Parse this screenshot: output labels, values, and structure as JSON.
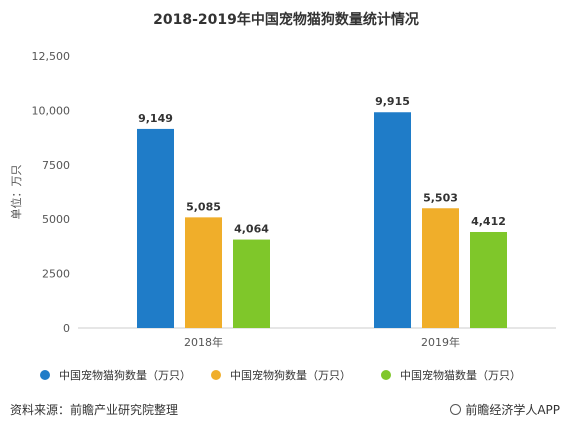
{
  "chart_data": {
    "type": "bar",
    "title": "2018-2019年中国宠物猫狗数量统计情况",
    "ylabel": "单位：万只",
    "xlabel": "",
    "categories": [
      "2018年",
      "2019年"
    ],
    "yticks": [
      0,
      2500,
      5000,
      7500,
      10000,
      12500
    ],
    "ytick_labels": [
      "0",
      "2500",
      "5000",
      "7500",
      "10,000",
      "12,500"
    ],
    "ylim": [
      0,
      12500
    ],
    "grid": false,
    "legend_position": "bottom",
    "series": [
      {
        "name": "中国宠物猫狗数量（万只）",
        "color": "#1F7CC8",
        "values": [
          9149,
          9915
        ],
        "labels": [
          "9,149",
          "9,915"
        ]
      },
      {
        "name": "中国宠物狗数量（万只）",
        "color": "#F0AE2A",
        "values": [
          5085,
          5503
        ],
        "labels": [
          "5,085",
          "5,503"
        ]
      },
      {
        "name": "中国宠物猫数量（万只）",
        "color": "#7FC72A",
        "values": [
          4064,
          4412
        ],
        "labels": [
          "4,064",
          "4,412"
        ]
      }
    ]
  },
  "footer": {
    "source": "资料来源：前瞻产业研究院整理",
    "brand": "前瞻经济学人APP"
  }
}
